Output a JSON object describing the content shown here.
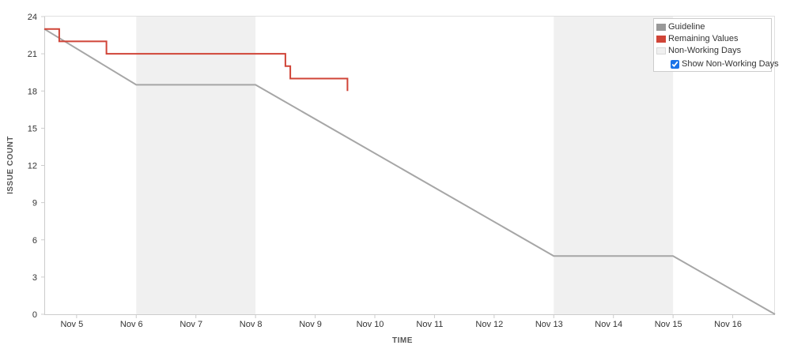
{
  "chart_data": {
    "type": "line",
    "title": "",
    "xlabel": "TIME",
    "ylabel": "ISSUE COUNT",
    "ylim": [
      0,
      24
    ],
    "xlim": [
      "2018-11-04T11:00",
      "2018-11-16T17:00"
    ],
    "yticks": [
      "0",
      "3",
      "6",
      "9",
      "12",
      "15",
      "18",
      "21",
      "24"
    ],
    "xticks": [
      {
        "date": "2018-11-05T00:00",
        "label": "Nov 5"
      },
      {
        "date": "2018-11-06T00:00",
        "label": "Nov 6"
      },
      {
        "date": "2018-11-07T00:00",
        "label": "Nov 7"
      },
      {
        "date": "2018-11-08T00:00",
        "label": "Nov 8"
      },
      {
        "date": "2018-11-09T00:00",
        "label": "Nov 9"
      },
      {
        "date": "2018-11-10T00:00",
        "label": "Nov 10"
      },
      {
        "date": "2018-11-11T00:00",
        "label": "Nov 11"
      },
      {
        "date": "2018-11-12T00:00",
        "label": "Nov 12"
      },
      {
        "date": "2018-11-13T00:00",
        "label": "Nov 13"
      },
      {
        "date": "2018-11-14T00:00",
        "label": "Nov 14"
      },
      {
        "date": "2018-11-15T00:00",
        "label": "Nov 15"
      },
      {
        "date": "2018-11-16T00:00",
        "label": "Nov 16"
      }
    ],
    "non_working_periods": [
      {
        "start": "2018-11-06T00:00",
        "end": "2018-11-08T00:00"
      },
      {
        "start": "2018-11-13T00:00",
        "end": "2018-11-15T00:00"
      }
    ],
    "series": [
      {
        "name": "Guideline",
        "color": "#a6a6a6",
        "points": [
          {
            "x": "2018-11-04T11:00",
            "y": 23
          },
          {
            "x": "2018-11-06T00:00",
            "y": 18.5
          },
          {
            "x": "2018-11-08T00:00",
            "y": 18.5
          },
          {
            "x": "2018-11-13T00:00",
            "y": 4.7
          },
          {
            "x": "2018-11-15T00:00",
            "y": 4.7
          },
          {
            "x": "2018-11-16T17:00",
            "y": 0
          }
        ]
      },
      {
        "name": "Remaining Values",
        "color": "#d04437",
        "step": true,
        "points": [
          {
            "x": "2018-11-04T11:00",
            "y": 23
          },
          {
            "x": "2018-11-04T17:00",
            "y": 22
          },
          {
            "x": "2018-11-05T12:00",
            "y": 21
          },
          {
            "x": "2018-11-08T12:00",
            "y": 20
          },
          {
            "x": "2018-11-08T14:00",
            "y": 19
          },
          {
            "x": "2018-11-09T13:00",
            "y": 18
          }
        ]
      }
    ],
    "grid": false,
    "legend_position": "top-right"
  },
  "legend": {
    "items": [
      {
        "label": "Guideline",
        "color": "#999999"
      },
      {
        "label": "Remaining Values",
        "color": "#d04437"
      },
      {
        "label": "Non-Working Days",
        "color": "#f0f0f0"
      }
    ],
    "show_non_working_days": {
      "label": "Show Non-Working Days",
      "checked": true
    }
  },
  "colors": {
    "non_working": "#f0f0f0",
    "axis": "#cccccc"
  }
}
